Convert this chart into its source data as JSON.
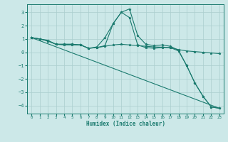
{
  "xlabel": "Humidex (Indice chaleur)",
  "xlim": [
    -0.5,
    23.5
  ],
  "ylim": [
    -4.6,
    3.6
  ],
  "yticks": [
    -4,
    -3,
    -2,
    -1,
    0,
    1,
    2,
    3
  ],
  "xticks": [
    0,
    1,
    2,
    3,
    4,
    5,
    6,
    7,
    8,
    9,
    10,
    11,
    12,
    13,
    14,
    15,
    16,
    17,
    18,
    19,
    20,
    21,
    22,
    23
  ],
  "color": "#1a7a6e",
  "bg_color": "#cce8e8",
  "grid_color": "#aacece",
  "series": [
    {
      "x": [
        0,
        1,
        2,
        3,
        4,
        5,
        6,
        7,
        8,
        9,
        10,
        11,
        12,
        13,
        14,
        15,
        16,
        17,
        18,
        19,
        20,
        21,
        22,
        23
      ],
      "y": [
        1.1,
        1.0,
        0.9,
        0.6,
        0.6,
        0.6,
        0.55,
        0.3,
        0.4,
        1.1,
        2.15,
        3.0,
        3.25,
        1.25,
        0.6,
        0.5,
        0.55,
        0.45,
        0.15,
        -1.0,
        -2.3,
        -3.3,
        -4.1,
        -4.2
      ],
      "marker": true
    },
    {
      "x": [
        0,
        1,
        2,
        3,
        4,
        5,
        6,
        7,
        8,
        9,
        10,
        11,
        12,
        13,
        14,
        15,
        16,
        17,
        18,
        19,
        20,
        21,
        22,
        23
      ],
      "y": [
        1.1,
        1.0,
        0.85,
        0.6,
        0.6,
        0.6,
        0.55,
        0.3,
        0.35,
        0.5,
        2.15,
        3.0,
        2.6,
        0.55,
        0.35,
        0.3,
        0.35,
        0.35,
        0.1,
        -1.0,
        -2.3,
        -3.3,
        -4.1,
        -4.2
      ],
      "marker": true
    },
    {
      "x": [
        0,
        1,
        2,
        3,
        4,
        5,
        6,
        7,
        8,
        9,
        10,
        11,
        12,
        13,
        14,
        15,
        16,
        17,
        18,
        19,
        20,
        21,
        22,
        23
      ],
      "y": [
        1.1,
        1.0,
        0.85,
        0.6,
        0.55,
        0.55,
        0.55,
        0.3,
        0.35,
        0.45,
        0.55,
        0.6,
        0.55,
        0.5,
        0.45,
        0.4,
        0.38,
        0.35,
        0.2,
        0.1,
        0.05,
        0.0,
        -0.05,
        -0.1
      ],
      "marker": true
    },
    {
      "x": [
        0,
        23
      ],
      "y": [
        1.1,
        -4.2
      ],
      "marker": false
    }
  ]
}
